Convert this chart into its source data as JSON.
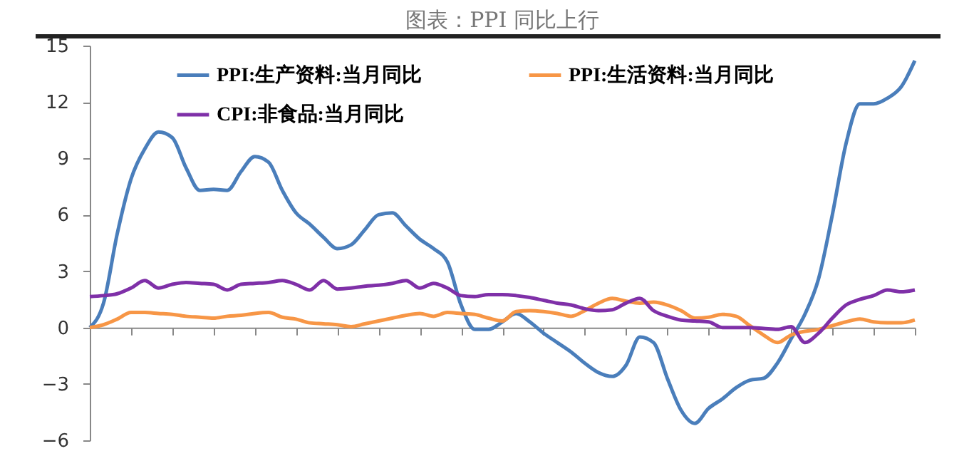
{
  "chart_data": {
    "type": "line",
    "title": "图表：PPI 同比上行",
    "categories": [
      null,
      null,
      null,
      null,
      null,
      null,
      null,
      null,
      null,
      null,
      null,
      null,
      null,
      null,
      null,
      null,
      null,
      null,
      null,
      null,
      null,
      null,
      null,
      null,
      null,
      null,
      null,
      null,
      null,
      null,
      null,
      null,
      null,
      null,
      null,
      null,
      null,
      null,
      null,
      null,
      null,
      null,
      null,
      null,
      null,
      null,
      null,
      null,
      null,
      null,
      null,
      null,
      null,
      null,
      null,
      null,
      null,
      null,
      null,
      null,
      null
    ],
    "ylim": [
      -6,
      15
    ],
    "yticks": [
      -6,
      -3,
      0,
      3,
      6,
      9,
      12,
      15
    ],
    "legend": "top",
    "tick_labels": "y",
    "series": [
      {
        "name": "PPI:生产资料:当月同比",
        "color": "#4a7ebb",
        "values": [
          0,
          1.3,
          5.0,
          7.9,
          9.5,
          10.4,
          10.1,
          8.5,
          7.3,
          7.35,
          7.3,
          8.3,
          9.1,
          8.8,
          7.3,
          6.1,
          5.5,
          4.8,
          4.2,
          4.4,
          5.2,
          6.0,
          6.1,
          5.4,
          4.7,
          4.2,
          3.5,
          1.2,
          -0.1,
          -0.1,
          0.3,
          0.75,
          0.3,
          -0.3,
          -0.8,
          -1.3,
          -1.9,
          -2.4,
          -2.6,
          -2.0,
          -0.5,
          -0.8,
          -2.7,
          -4.4,
          -5.1,
          -4.3,
          -3.8,
          -3.2,
          -2.8,
          -2.7,
          -1.9,
          -0.6,
          0.7,
          2.6,
          6.0,
          9.8,
          11.9,
          11.9,
          12.2,
          12.8,
          14.2
        ]
      },
      {
        "name": "PPI:生活资料:当月同比",
        "color": "#f79646",
        "values": [
          0,
          0.15,
          0.45,
          0.8,
          0.8,
          0.75,
          0.7,
          0.6,
          0.55,
          0.5,
          0.6,
          0.65,
          0.75,
          0.8,
          0.55,
          0.45,
          0.25,
          0.2,
          0.15,
          0.05,
          0.2,
          0.35,
          0.5,
          0.65,
          0.75,
          0.6,
          0.8,
          0.75,
          0.7,
          0.5,
          0.35,
          0.85,
          0.9,
          0.85,
          0.75,
          0.6,
          0.9,
          1.3,
          1.55,
          1.4,
          1.3,
          1.35,
          1.2,
          0.9,
          0.5,
          0.55,
          0.7,
          0.6,
          0.1,
          -0.4,
          -0.8,
          -0.4,
          -0.2,
          -0.1,
          0.1,
          0.3,
          0.45,
          0.3,
          0.25,
          0.25,
          0.4
        ]
      },
      {
        "name": "CPI:非食品:当月同比",
        "color": "#7f30a8",
        "values": [
          1.65,
          1.7,
          1.8,
          2.1,
          2.5,
          2.1,
          2.3,
          2.4,
          2.35,
          2.3,
          2.0,
          2.3,
          2.35,
          2.4,
          2.5,
          2.3,
          2.0,
          2.5,
          2.05,
          2.1,
          2.2,
          2.25,
          2.35,
          2.5,
          2.1,
          2.35,
          2.1,
          1.7,
          1.65,
          1.75,
          1.75,
          1.7,
          1.6,
          1.45,
          1.3,
          1.2,
          1.0,
          0.9,
          0.95,
          1.3,
          1.55,
          0.9,
          0.6,
          0.4,
          0.35,
          0.3,
          0.0,
          0.0,
          0.0,
          -0.05,
          -0.1,
          0.05,
          -0.8,
          -0.3,
          0.5,
          1.2,
          1.5,
          1.7,
          2.0,
          1.9,
          2.0
        ]
      }
    ]
  }
}
